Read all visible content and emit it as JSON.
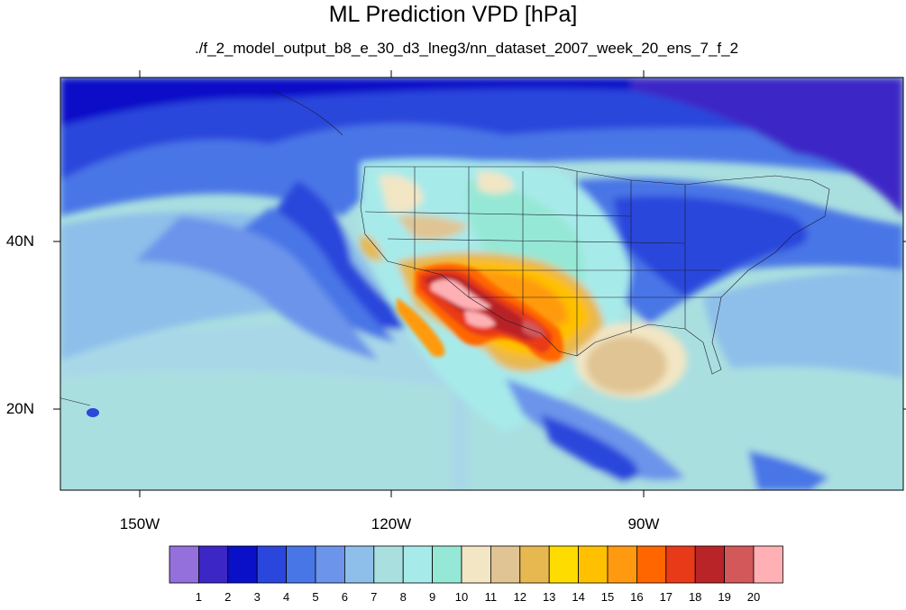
{
  "title": "ML Prediction VPD [hPa]",
  "subtitle": "./f_2_model_output_b8_e_30_d3_lneg3/nn_dataset_2007_week_20_ens_7_f_2",
  "lat_labels": [
    "40N",
    "20N"
  ],
  "lon_labels": [
    "150W",
    "120W",
    "90W"
  ],
  "colorbar": {
    "labels": [
      "1",
      "2",
      "3",
      "4",
      "5",
      "6",
      "7",
      "8",
      "9",
      "10",
      "11",
      "12",
      "13",
      "14",
      "15",
      "16",
      "17",
      "18",
      "19",
      "20"
    ],
    "colors": [
      "#9370db",
      "#3d26c6",
      "#0a10c8",
      "#2a46dc",
      "#4876e6",
      "#6c94ea",
      "#8ebfea",
      "#aadfe0",
      "#a7eaea",
      "#96e8d6",
      "#f2e6c4",
      "#e0c493",
      "#e8b850",
      "#ffdc00",
      "#ffc000",
      "#ff9a10",
      "#ff6600",
      "#e83a18",
      "#b82428",
      "#d2585a",
      "#ffb0b4"
    ]
  }
}
